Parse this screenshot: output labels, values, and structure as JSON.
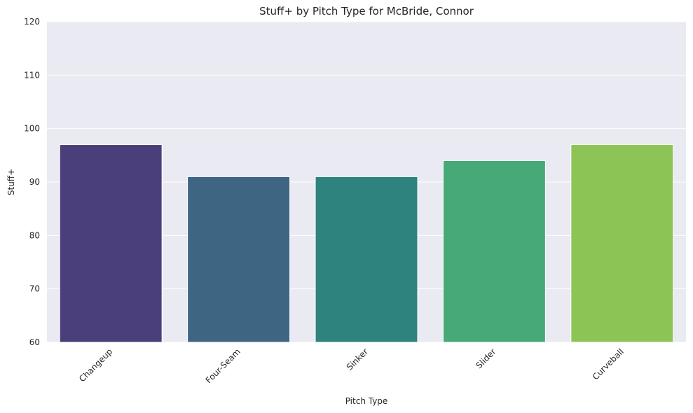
{
  "chart_data": {
    "type": "bar",
    "title": "Stuff+ by Pitch Type for McBride, Connor",
    "xlabel": "Pitch Type",
    "ylabel": "Stuff+",
    "categories": [
      "Changeup",
      "Four-Seam",
      "Sinker",
      "Slider",
      "Curveball"
    ],
    "values": [
      97,
      91,
      91,
      94,
      97
    ],
    "colors": [
      "#4a3f7a",
      "#3e6582",
      "#2e837e",
      "#47a878",
      "#8dc456"
    ],
    "ylim": [
      60,
      120
    ],
    "yticks": [
      60,
      70,
      80,
      90,
      100,
      110,
      120
    ],
    "grid": true,
    "plot_background": "#eaeaf2"
  }
}
